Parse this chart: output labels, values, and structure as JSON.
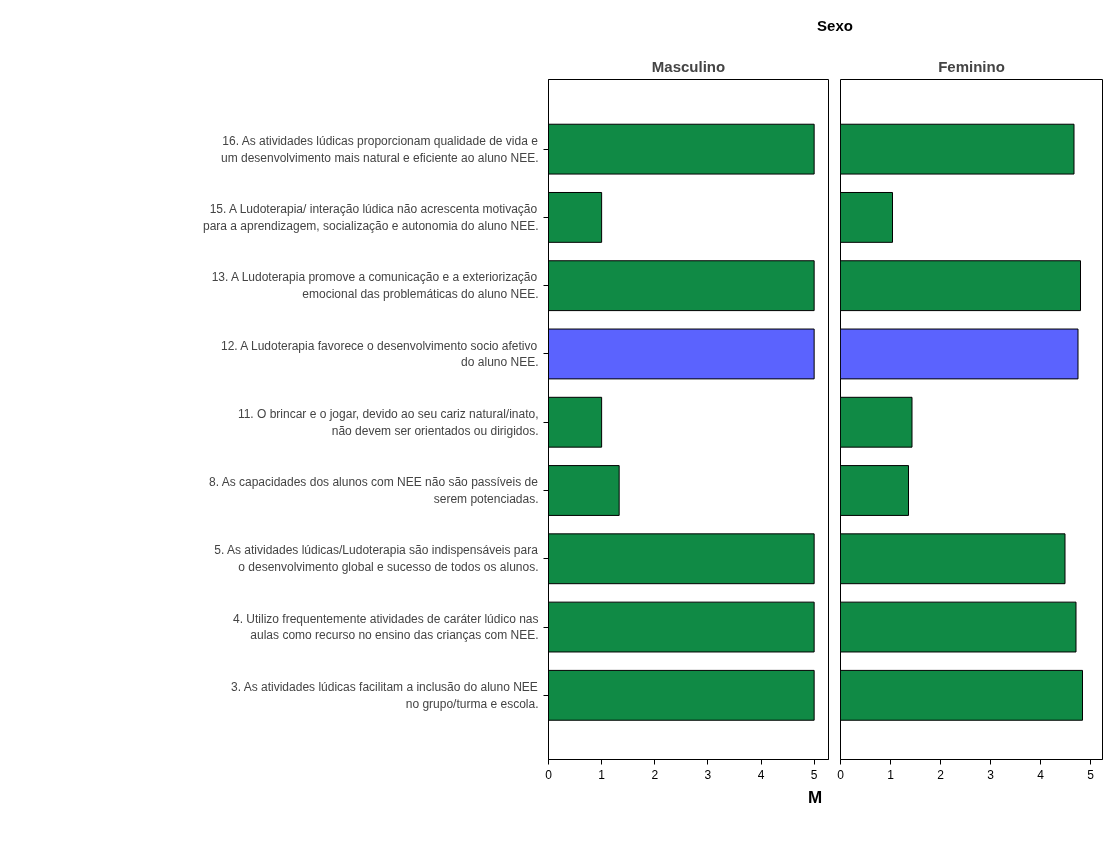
{
  "chart_data": [
    {
      "type": "bar",
      "orientation": "horizontal",
      "annotations": [
        "Sexo"
      ],
      "title": "Masculino",
      "xlabel": "M",
      "grid": false,
      "categories": [
        "16. As atividades lúdicas proporcionam qualidade de vida e um desenvolvimento mais natural e eficiente ao aluno NEE.",
        "15. A Ludoterapia/ interação lúdica não acrescenta motivação para a aprendizagem, socialização e autonomia do aluno NEE.",
        "13. A Ludoterapia promove a comunicação e a exteriorização emocional das problemáticas do aluno NEE.",
        "12. A Ludoterapia favorece o desenvolvimento socio afetivo do aluno NEE.",
        "11. O brincar e o jogar, devido ao seu cariz natural/inato, não devem ser orientados ou dirigidos.",
        "8. As capacidades dos alunos com NEE não são passíveis de serem potenciadas.",
        "5. As atividades lúdicas/Ludoterapia são indispensáveis para o desenvolvimento global e sucesso de todos os alunos.",
        "4. Utilizo frequentemente atividades de caráter lúdico nas aulas como recurso no ensino das crianças com NEE.",
        "3. As atividades lúdicas facilitam a inclusão do aluno NEE no grupo/turma e escola."
      ],
      "values": [
        5,
        1,
        5,
        5,
        1,
        1.33,
        5,
        5,
        5
      ],
      "colors": [
        "#108a45",
        "#108a45",
        "#108a45",
        "#5b63fe",
        "#108a45",
        "#108a45",
        "#108a45",
        "#108a45",
        "#108a45"
      ],
      "xlim": [
        0,
        5.27
      ],
      "xticks": [
        0,
        1,
        2,
        3,
        4,
        5
      ]
    },
    {
      "type": "bar",
      "orientation": "horizontal",
      "title": "Feminino",
      "grid": false,
      "tick_labels": "x",
      "categories": [
        "16. As atividades lúdicas proporcionam qualidade de vida e um desenvolvimento mais natural e eficiente ao aluno NEE.",
        "15. A Ludoterapia/ interação lúdica não acrescenta motivação para a aprendizagem, socialização e autonomia do aluno NEE.",
        "13. A Ludoterapia promove a comunicação e a exteriorização emocional das problemáticas do aluno NEE.",
        "12. A Ludoterapia favorece o desenvolvimento socio afetivo do aluno NEE.",
        "11. O brincar e o jogar, devido ao seu cariz natural/inato, não devem ser orientados ou dirigidos.",
        "8. As capacidades dos alunos com NEE não são passíveis de serem potenciadas.",
        "5. As atividades lúdicas/Ludoterapia são indispensáveis para o desenvolvimento global e sucesso de todos os alunos.",
        "4. Utilizo frequentemente atividades de caráter lúdico nas aulas como recurso no ensino das crianças com NEE.",
        "3. As atividades lúdicas facilitam a inclusão do aluno NEE no grupo/turma e escola."
      ],
      "values": [
        4.67,
        1.04,
        4.8,
        4.75,
        1.43,
        1.36,
        4.49,
        4.71,
        4.84
      ],
      "colors": [
        "#108a45",
        "#108a45",
        "#108a45",
        "#5b63fe",
        "#108a45",
        "#108a45",
        "#108a45",
        "#108a45",
        "#108a45"
      ],
      "xlim": [
        0,
        5.24
      ],
      "xticks": [
        0,
        1,
        2,
        3,
        4,
        5
      ]
    }
  ]
}
